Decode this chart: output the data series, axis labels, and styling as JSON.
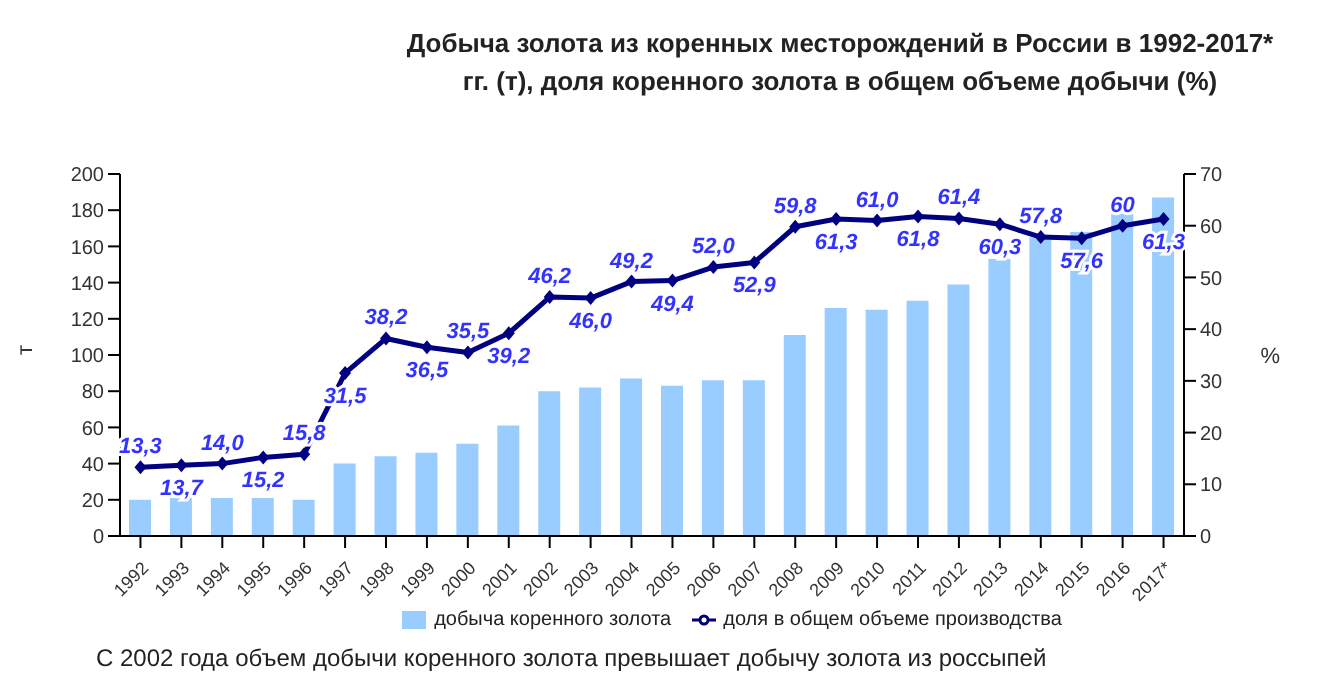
{
  "chart_data": {
    "type": "bar",
    "title": "Добыча золота из коренных месторождений в России в 1992-2017* гг. (т), доля коренного золота в общем объеме добычи (%)",
    "categories": [
      "1992",
      "1993",
      "1994",
      "1995",
      "1996",
      "1997",
      "1998",
      "1999",
      "2000",
      "2001",
      "2002",
      "2003",
      "2004",
      "2005",
      "2006",
      "2007",
      "2008",
      "2009",
      "2010",
      "2011",
      "2012",
      "2013",
      "2014",
      "2015",
      "2016",
      "2017*"
    ],
    "series": [
      {
        "name": "добыча коренного золота",
        "color": "#99ccff",
        "values": [
          20,
          21,
          21,
          21,
          20,
          40,
          44,
          46,
          51,
          61,
          80,
          82,
          87,
          83,
          86,
          86,
          111,
          126,
          125,
          130,
          139,
          153,
          165,
          168,
          178,
          187
        ]
      },
      {
        "name": "доля в общем объеме производства",
        "type": "line",
        "axis": "y2",
        "color": "#000080",
        "marker": "diamond",
        "values": [
          13.3,
          13.7,
          14.0,
          15.2,
          15.8,
          31.5,
          38.2,
          36.5,
          35.5,
          39.2,
          46.2,
          46.0,
          49.2,
          49.4,
          52.0,
          52.9,
          59.8,
          61.3,
          61.0,
          61.8,
          61.4,
          60.3,
          57.8,
          57.6,
          60,
          61.3
        ],
        "value_labels": [
          "13,3",
          "13,7",
          "14,0",
          "15,2",
          "15,8",
          "31,5",
          "38,2",
          "36,5",
          "35,5",
          "39,2",
          "46,2",
          "46,0",
          "49,2",
          "49,4",
          "52,0",
          "52,9",
          "59,8",
          "61,3",
          "61,0",
          "61,8",
          "61,4",
          "60,3",
          "57,8",
          "57,6",
          "60",
          "61,3"
        ]
      }
    ],
    "ylabel": "т",
    "y2label": "%",
    "ylim": [
      0,
      200
    ],
    "yticks": [
      0,
      20,
      40,
      60,
      80,
      100,
      120,
      140,
      160,
      180,
      200
    ],
    "y2lim": [
      0,
      70
    ],
    "y2ticks": [
      0,
      10,
      20,
      30,
      40,
      50,
      60,
      70
    ],
    "grid": false,
    "legend": "bottom",
    "annotations": [
      "С 2002 года объем добычи коренного золота превышает добычу золота из россыпей"
    ]
  }
}
